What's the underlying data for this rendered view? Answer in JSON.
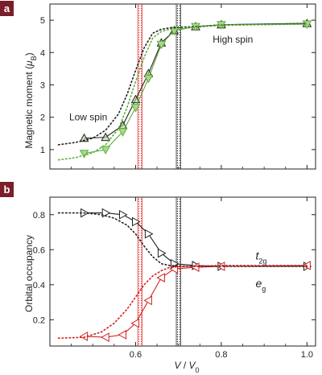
{
  "colors": {
    "badge": "#7a1e2a",
    "black_series": "#222222",
    "green_series": "#5fae3c",
    "green_fill": "#a8d98a",
    "red_series": "#d62020",
    "red_band": "#e04040",
    "black_band": "#333333"
  },
  "chart_data": [
    {
      "panel": "a",
      "type": "line",
      "ylabel_main": "Magnetic moment (",
      "ylabel_sym": "μ",
      "ylabel_sub": "B",
      "ylabel_tail": ")",
      "xlim": [
        0.4,
        1.02
      ],
      "ylim": [
        0.4,
        5.5
      ],
      "xticks": [
        0.6,
        0.8,
        1.0
      ],
      "yticks": [
        1,
        2,
        3,
        4,
        5
      ],
      "xtick_labels": [
        "",
        "",
        ""
      ],
      "ytick_labels": [
        "1",
        "2",
        "3",
        "4",
        "5"
      ],
      "bands": [
        {
          "color_key": "red_band",
          "x": [
            0.605,
            0.615
          ]
        },
        {
          "color_key": "black_band",
          "x": [
            0.695,
            0.705
          ]
        }
      ],
      "series": [
        {
          "color_key": "black_series",
          "marker": "triangle-up",
          "style": "solid",
          "x": [
            0.48,
            0.53,
            0.57,
            0.6,
            0.63,
            0.66,
            0.69,
            0.74,
            0.8,
            1.0
          ],
          "y": [
            1.35,
            1.38,
            1.75,
            2.55,
            3.35,
            4.3,
            4.68,
            4.8,
            4.86,
            4.9
          ]
        },
        {
          "color_key": "green_series",
          "marker": "triangle-down",
          "style": "solid",
          "x": [
            0.48,
            0.53,
            0.57,
            0.6,
            0.63,
            0.66,
            0.69,
            0.74,
            0.8,
            1.0
          ],
          "y": [
            0.88,
            1.0,
            1.55,
            2.3,
            3.2,
            4.25,
            4.68,
            4.8,
            4.86,
            4.88
          ]
        },
        {
          "color_key": "black_series",
          "marker": "none",
          "style": "dotted",
          "x": [
            0.42,
            0.46,
            0.5,
            0.53,
            0.56,
            0.58,
            0.6,
            0.62,
            0.64,
            0.66,
            0.68,
            0.7,
            0.74,
            0.8,
            1.0
          ],
          "y": [
            1.15,
            1.22,
            1.35,
            1.6,
            2.1,
            2.7,
            3.45,
            4.15,
            4.6,
            4.72,
            4.76,
            4.78,
            4.8,
            4.85,
            4.9
          ]
        },
        {
          "color_key": "green_series",
          "marker": "none",
          "style": "dotted",
          "x": [
            0.42,
            0.46,
            0.5,
            0.53,
            0.56,
            0.58,
            0.6,
            0.62,
            0.64,
            0.66,
            0.68,
            0.7,
            0.74,
            0.8,
            1.0
          ],
          "y": [
            0.68,
            0.75,
            0.9,
            1.15,
            1.65,
            2.3,
            3.1,
            3.85,
            4.45,
            4.65,
            4.72,
            4.75,
            4.78,
            4.84,
            4.88
          ]
        }
      ],
      "annotations": [
        {
          "text": "High spin",
          "x": 0.78,
          "y": 4.3
        },
        {
          "text": "Low spin",
          "x": 0.445,
          "y": 1.9
        }
      ]
    },
    {
      "panel": "b",
      "type": "line",
      "ylabel": "Orbital occupancy",
      "xlabel_main": "V",
      "xlabel_sep": " / ",
      "xlabel_tail": "V",
      "xlabel_sub": "0",
      "xlim": [
        0.4,
        1.02
      ],
      "ylim": [
        0.05,
        0.9
      ],
      "xticks": [
        0.6,
        0.8,
        1.0
      ],
      "yticks": [
        0.2,
        0.4,
        0.6,
        0.8
      ],
      "xtick_labels": [
        "0.6",
        "0.8",
        "1.0"
      ],
      "ytick_labels": [
        "0.2",
        "0.4",
        "0.6",
        "0.8"
      ],
      "bands": [
        {
          "color_key": "red_band",
          "x": [
            0.605,
            0.615
          ]
        },
        {
          "color_key": "black_band",
          "x": [
            0.695,
            0.705
          ]
        }
      ],
      "series": [
        {
          "color_key": "black_series",
          "marker": "triangle-right",
          "style": "solid",
          "x": [
            0.48,
            0.53,
            0.57,
            0.6,
            0.63,
            0.66,
            0.69,
            0.74,
            0.8,
            1.0
          ],
          "y": [
            0.81,
            0.81,
            0.8,
            0.76,
            0.69,
            0.58,
            0.52,
            0.51,
            0.505,
            0.505
          ]
        },
        {
          "color_key": "red_series",
          "marker": "triangle-left",
          "style": "solid",
          "x": [
            0.48,
            0.53,
            0.57,
            0.6,
            0.63,
            0.66,
            0.69,
            0.74,
            0.8,
            1.0
          ],
          "y": [
            0.105,
            0.1,
            0.115,
            0.18,
            0.31,
            0.44,
            0.49,
            0.5,
            0.505,
            0.51
          ]
        },
        {
          "color_key": "black_series",
          "marker": "none",
          "style": "dotted",
          "x": [
            0.42,
            0.48,
            0.52,
            0.55,
            0.58,
            0.6,
            0.62,
            0.64,
            0.66,
            0.68,
            0.72,
            0.8,
            1.0
          ],
          "y": [
            0.81,
            0.81,
            0.8,
            0.78,
            0.74,
            0.69,
            0.62,
            0.56,
            0.52,
            0.51,
            0.505,
            0.505,
            0.505
          ]
        },
        {
          "color_key": "red_series",
          "marker": "none",
          "style": "dotted",
          "x": [
            0.42,
            0.48,
            0.52,
            0.55,
            0.58,
            0.6,
            0.62,
            0.64,
            0.66,
            0.68,
            0.72,
            0.8,
            1.0
          ],
          "y": [
            0.095,
            0.1,
            0.13,
            0.18,
            0.26,
            0.33,
            0.4,
            0.45,
            0.48,
            0.5,
            0.505,
            0.51,
            0.51
          ]
        }
      ],
      "annotations": [
        {
          "text_main": "t",
          "text_sub": "2g",
          "color_key": "black_series",
          "x": 0.88,
          "y": 0.545
        },
        {
          "text_main": "e",
          "text_sub": "g",
          "color_key": "red_series",
          "x": 0.88,
          "y": 0.385
        }
      ]
    }
  ]
}
